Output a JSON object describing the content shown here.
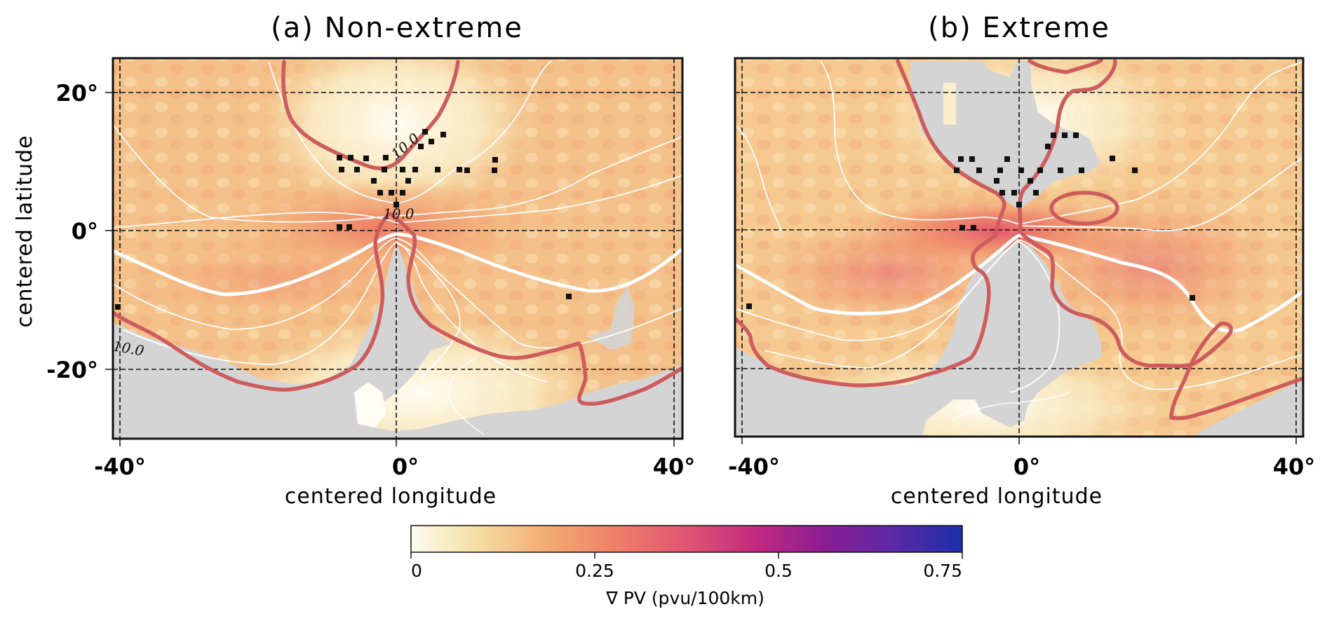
{
  "figure": {
    "colorbar": {
      "label": "∇ PV (pvu/100km)",
      "range": [
        0,
        0.75
      ],
      "ticks": [
        0,
        0.25,
        0.5,
        0.75
      ],
      "tick_labels": [
        "0",
        "0.25",
        "0.5",
        "0.75"
      ],
      "colormap": [
        "#fcfdf0",
        "#f5dca0",
        "#f3aa72",
        "#ee7e68",
        "#e05572",
        "#c22a7f",
        "#8a1d93",
        "#5b2aa6",
        "#1a2fa8"
      ],
      "orientation": "horizontal",
      "placement": "bottom-center"
    },
    "colors": {
      "red_contour": "#cd5c5c",
      "white_contour": "#ffffff",
      "masked_land": "#d4d4d4",
      "stippling": "#111111"
    }
  },
  "chart_data": [
    {
      "type": "heatmap",
      "panel": "a",
      "title": "(a) Non-extreme",
      "xlabel": "centered longitude",
      "ylabel": "centered latitude",
      "xlim": [
        -41,
        41
      ],
      "ylim": [
        -30,
        25
      ],
      "xticks": [
        -40,
        0,
        40
      ],
      "xtick_labels": [
        "-40°",
        "0°",
        "40°"
      ],
      "yticks": [
        20,
        0,
        -20
      ],
      "ytick_labels": [
        "20°",
        "0°",
        "-20°"
      ],
      "grid": true,
      "field": "∇ PV magnitude (pvu/100km)",
      "field_peak_value_approx": 0.35,
      "field_peak_location": [
        -2,
        1
      ],
      "contour_labels": [
        "10.0",
        "10.0",
        "10.0"
      ],
      "red_contour_value": 10.0,
      "overlays": [
        "white PV contours",
        "red 10.0 contour",
        "grey masked region",
        "black stippling (significance)"
      ]
    },
    {
      "type": "heatmap",
      "panel": "b",
      "title": "(b) Extreme",
      "xlabel": "centered longitude",
      "ylabel": "",
      "xlim": [
        -41,
        41
      ],
      "ylim": [
        -30,
        25
      ],
      "xticks": [
        -40,
        0,
        40
      ],
      "xtick_labels": [
        "-40°",
        "0°",
        "40°"
      ],
      "yticks": [
        20,
        0,
        -20
      ],
      "ytick_labels": [],
      "grid": true,
      "field": "∇ PV magnitude (pvu/100km)",
      "field_peak_value_approx": 0.42,
      "field_peak_location": [
        -3,
        0
      ],
      "red_contour_value": 10.0,
      "overlays": [
        "white PV contours",
        "red 10.0 contour",
        "grey masked region",
        "black stippling (significance)"
      ]
    }
  ]
}
